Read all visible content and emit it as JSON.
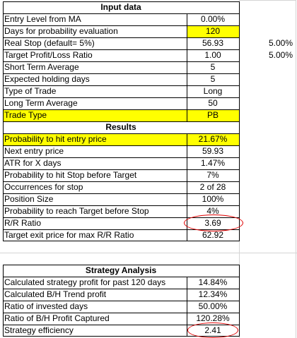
{
  "input_section": {
    "header": "Input data",
    "rows": [
      {
        "label": "Entry Level from MA",
        "value": "0.00%"
      },
      {
        "label": "Days for probability evaluation",
        "value": "120"
      },
      {
        "label": "Real Stop (default= 5%)",
        "value": "56.93",
        "extra": "5.00%"
      },
      {
        "label": "Target Profit/Loss Ratio",
        "value": "1.00",
        "extra": "5.00%"
      },
      {
        "label": "Short Term Average",
        "value": "5"
      },
      {
        "label": "Expected holding days",
        "value": "5"
      },
      {
        "label": "Type of Trade",
        "value": "Long"
      },
      {
        "label": "Long Term Average",
        "value": "50"
      },
      {
        "label": "Trade Type",
        "value": "PB"
      }
    ]
  },
  "results_section": {
    "header": "Results",
    "rows": [
      {
        "label": "Probability to hit entry price",
        "value": "21.67%"
      },
      {
        "label": "Next entry price",
        "value": "59.93"
      },
      {
        "label": "ATR for X days",
        "value": "1.47%"
      },
      {
        "label": "Probability to hit Stop before Target",
        "value": "7%"
      },
      {
        "label": "Occurrences for stop",
        "value": "2 of 28"
      },
      {
        "label": "Position Size",
        "value": "100%"
      },
      {
        "label": "Probability to reach Target before Stop",
        "value": "4%"
      },
      {
        "label": "R/R Ratio",
        "value": "3.69"
      },
      {
        "label": "Target exit price for max R/R Ratio",
        "value": "62.92"
      }
    ]
  },
  "strategy_section": {
    "header": "Strategy Analysis",
    "rows": [
      {
        "label": "Calculated strategy profit for past 120 days",
        "value": "14.84%"
      },
      {
        "label": "Calculated B/H Trend profit",
        "value": "12.34%"
      },
      {
        "label": "Ratio of invested days",
        "value": "50.00%"
      },
      {
        "label": "Ratio of B/H Profit Captured",
        "value": "120.28%"
      },
      {
        "label": "Strategy efficiency",
        "value": "2.41"
      }
    ]
  },
  "colors": {
    "highlight": "#ffff00",
    "circle": "#e00000",
    "border": "#000000"
  }
}
